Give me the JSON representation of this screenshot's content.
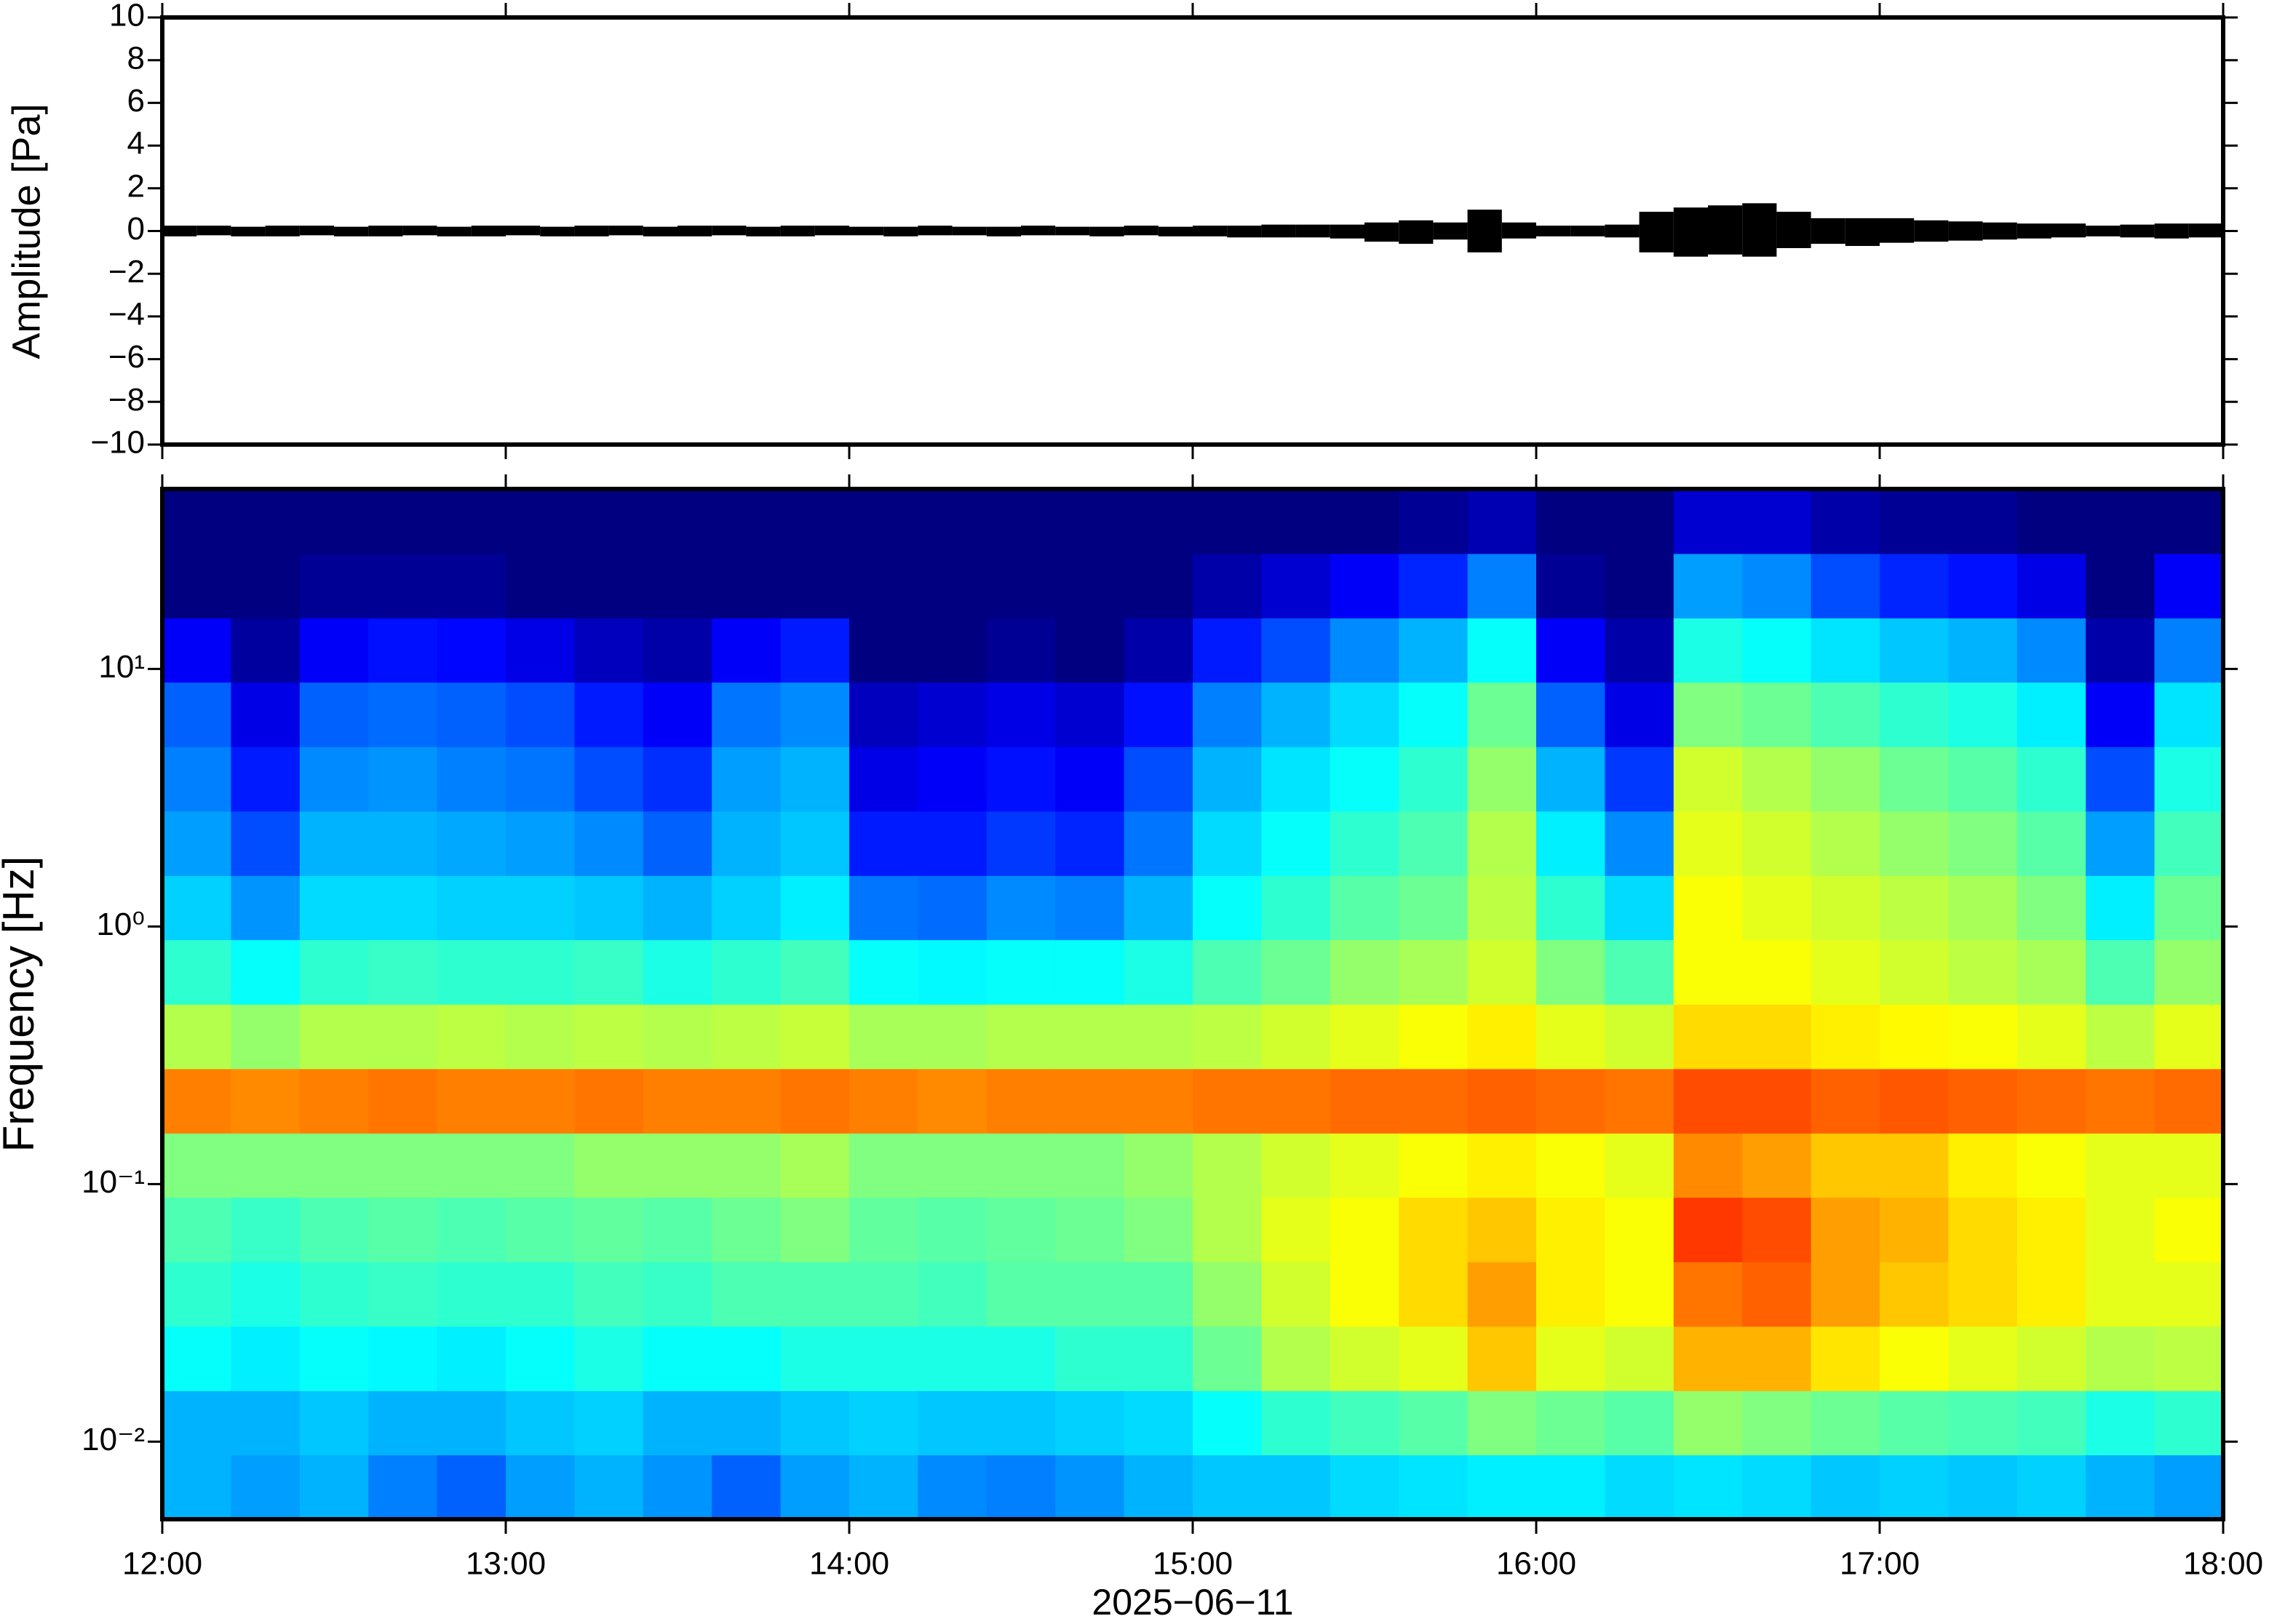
{
  "chart_data": [
    {
      "type": "waveform",
      "ylabel": "Amplitude [Pa]",
      "xlim": [
        12,
        18
      ],
      "xticks": [
        12,
        13,
        14,
        15,
        16,
        17,
        18
      ],
      "ylim": [
        -10,
        10
      ],
      "yticks": [
        {
          "value": -10,
          "label": "−10"
        },
        {
          "value": -8,
          "label": "−8"
        },
        {
          "value": -6,
          "label": "−6"
        },
        {
          "value": -4,
          "label": "−4"
        },
        {
          "value": -2,
          "label": "−2"
        },
        0,
        2,
        4,
        6,
        8,
        10
      ],
      "color": "#000000",
      "x": [
        12.0,
        12.1,
        12.2,
        12.3,
        12.4,
        12.5,
        12.6,
        12.7,
        12.8,
        12.9,
        13.0,
        13.1,
        13.2,
        13.3,
        13.4,
        13.5,
        13.6,
        13.7,
        13.8,
        13.9,
        14.0,
        14.1,
        14.2,
        14.3,
        14.4,
        14.5,
        14.6,
        14.7,
        14.8,
        14.9,
        15.0,
        15.1,
        15.2,
        15.3,
        15.4,
        15.5,
        15.6,
        15.7,
        15.8,
        15.9,
        16.0,
        16.1,
        16.2,
        16.3,
        16.4,
        16.5,
        16.6,
        16.7,
        16.8,
        16.9,
        17.0,
        17.1,
        17.2,
        17.3,
        17.4,
        17.5,
        17.6,
        17.7,
        17.8,
        17.9
      ],
      "series": [
        {
          "values": [
            0.25,
            0.25,
            0.2,
            0.25,
            0.25,
            0.2,
            0.25,
            0.25,
            0.2,
            0.25,
            0.25,
            0.2,
            0.25,
            0.25,
            0.2,
            0.25,
            0.25,
            0.2,
            0.25,
            0.25,
            0.2,
            0.2,
            0.25,
            0.2,
            0.2,
            0.25,
            0.2,
            0.2,
            0.25,
            0.2,
            0.25,
            0.25,
            0.3,
            0.3,
            0.3,
            0.4,
            0.5,
            0.4,
            1.0,
            0.4,
            0.25,
            0.25,
            0.3,
            0.9,
            1.1,
            1.2,
            1.3,
            0.9,
            0.6,
            0.6,
            0.6,
            0.5,
            0.45,
            0.4,
            0.35,
            0.35,
            0.25,
            0.3,
            0.35,
            0.35
          ]
        },
        {
          "values": [
            -0.25,
            -0.2,
            -0.25,
            -0.25,
            -0.2,
            -0.25,
            -0.25,
            -0.2,
            -0.25,
            -0.25,
            -0.2,
            -0.25,
            -0.25,
            -0.2,
            -0.25,
            -0.25,
            -0.2,
            -0.25,
            -0.25,
            -0.2,
            -0.2,
            -0.25,
            -0.2,
            -0.2,
            -0.25,
            -0.2,
            -0.2,
            -0.25,
            -0.2,
            -0.25,
            -0.25,
            -0.3,
            -0.3,
            -0.3,
            -0.35,
            -0.5,
            -0.6,
            -0.4,
            -1.0,
            -0.35,
            -0.25,
            -0.25,
            -0.3,
            -1.0,
            -1.2,
            -1.1,
            -1.2,
            -0.8,
            -0.6,
            -0.7,
            -0.55,
            -0.5,
            -0.45,
            -0.4,
            -0.35,
            -0.3,
            -0.25,
            -0.3,
            -0.35,
            -0.3
          ]
        }
      ]
    },
    {
      "type": "heatmap",
      "ylabel": "Frequency [Hz]",
      "xlabel": "2025−06−11",
      "xlim": [
        12,
        18
      ],
      "xticks": [
        {
          "value": 12,
          "label": "12:00"
        },
        {
          "value": 13,
          "label": "13:00"
        },
        {
          "value": 14,
          "label": "14:00"
        },
        {
          "value": 15,
          "label": "15:00"
        },
        {
          "value": 16,
          "label": "16:00"
        },
        {
          "value": 17,
          "label": "17:00"
        },
        {
          "value": 18,
          "label": "18:00"
        }
      ],
      "ylim": [
        0.005,
        50
      ],
      "log_y": true,
      "yticks": [
        {
          "value": 0.01,
          "label": "10⁻²"
        },
        {
          "value": 0.1,
          "label": "10⁻¹"
        },
        {
          "value": 1,
          "label": "10⁰"
        },
        {
          "value": 10,
          "label": "10¹"
        }
      ],
      "colormap": "jet",
      "zlim": [
        0,
        1
      ],
      "xbins": [
        12.0,
        12.2,
        12.4,
        12.6,
        12.8,
        13.0,
        13.2,
        13.4,
        13.6,
        13.8,
        14.0,
        14.2,
        14.4,
        14.6,
        14.8,
        15.0,
        15.2,
        15.4,
        15.6,
        15.8,
        16.0,
        16.2,
        16.4,
        16.6,
        16.8,
        17.0,
        17.2,
        17.4,
        17.6,
        17.8,
        18.0
      ],
      "ybins": [
        0.005,
        0.0089,
        0.0158,
        0.0281,
        0.05,
        0.089,
        0.158,
        0.281,
        0.5,
        0.89,
        1.58,
        2.81,
        5,
        8.9,
        15.8,
        28.1,
        50
      ],
      "z": [
        [
          0.3,
          0.3,
          0.38,
          0.42,
          0.45,
          0.5,
          0.75,
          0.55,
          0.42,
          0.33,
          0.28,
          0.25,
          0.22,
          0.12,
          0,
          0
        ],
        [
          0.28,
          0.3,
          0.36,
          0.4,
          0.43,
          0.5,
          0.74,
          0.52,
          0.38,
          0.27,
          0.2,
          0.15,
          0.1,
          0.03,
          0,
          0
        ],
        [
          0.3,
          0.32,
          0.38,
          0.42,
          0.45,
          0.5,
          0.75,
          0.55,
          0.42,
          0.34,
          0.3,
          0.26,
          0.22,
          0.12,
          0.02,
          0
        ],
        [
          0.25,
          0.3,
          0.37,
          0.43,
          0.46,
          0.5,
          0.76,
          0.55,
          0.43,
          0.34,
          0.3,
          0.27,
          0.23,
          0.14,
          0.02,
          0
        ],
        [
          0.22,
          0.3,
          0.36,
          0.42,
          0.45,
          0.5,
          0.75,
          0.56,
          0.42,
          0.33,
          0.29,
          0.25,
          0.22,
          0.13,
          0.02,
          0
        ],
        [
          0.28,
          0.32,
          0.38,
          0.42,
          0.46,
          0.5,
          0.75,
          0.55,
          0.42,
          0.33,
          0.28,
          0.24,
          0.2,
          0.1,
          0,
          0
        ],
        [
          0.3,
          0.33,
          0.4,
          0.44,
          0.47,
          0.52,
          0.76,
          0.56,
          0.43,
          0.32,
          0.26,
          0.2,
          0.15,
          0.06,
          0,
          0
        ],
        [
          0.27,
          0.3,
          0.38,
          0.43,
          0.46,
          0.52,
          0.75,
          0.55,
          0.4,
          0.3,
          0.22,
          0.17,
          0.12,
          0.04,
          0,
          0
        ],
        [
          0.22,
          0.3,
          0.38,
          0.45,
          0.48,
          0.52,
          0.75,
          0.56,
          0.42,
          0.33,
          0.3,
          0.28,
          0.24,
          0.12,
          0,
          0
        ],
        [
          0.28,
          0.32,
          0.4,
          0.45,
          0.5,
          0.54,
          0.76,
          0.57,
          0.44,
          0.36,
          0.32,
          0.3,
          0.26,
          0.15,
          0,
          0
        ],
        [
          0.3,
          0.33,
          0.4,
          0.45,
          0.47,
          0.5,
          0.75,
          0.54,
          0.38,
          0.24,
          0.15,
          0.1,
          0.06,
          0,
          0,
          0
        ],
        [
          0.26,
          0.32,
          0.4,
          0.44,
          0.46,
          0.5,
          0.74,
          0.54,
          0.37,
          0.23,
          0.15,
          0.12,
          0.08,
          0,
          0,
          0
        ],
        [
          0.25,
          0.32,
          0.4,
          0.46,
          0.47,
          0.5,
          0.75,
          0.55,
          0.38,
          0.26,
          0.18,
          0.14,
          0.1,
          0.02,
          0,
          0
        ],
        [
          0.27,
          0.33,
          0.42,
          0.46,
          0.48,
          0.5,
          0.75,
          0.55,
          0.38,
          0.25,
          0.16,
          0.12,
          0.08,
          0,
          0,
          0
        ],
        [
          0.3,
          0.34,
          0.42,
          0.46,
          0.5,
          0.52,
          0.75,
          0.55,
          0.4,
          0.3,
          0.24,
          0.2,
          0.14,
          0.04,
          0,
          0
        ],
        [
          0.32,
          0.38,
          0.48,
          0.52,
          0.55,
          0.55,
          0.76,
          0.56,
          0.45,
          0.38,
          0.34,
          0.3,
          0.25,
          0.15,
          0.04,
          0
        ],
        [
          0.32,
          0.42,
          0.55,
          0.58,
          0.6,
          0.58,
          0.76,
          0.58,
          0.48,
          0.42,
          0.38,
          0.35,
          0.3,
          0.2,
          0.08,
          0
        ],
        [
          0.34,
          0.44,
          0.58,
          0.62,
          0.62,
          0.6,
          0.77,
          0.6,
          0.52,
          0.46,
          0.42,
          0.38,
          0.34,
          0.26,
          0.12,
          0
        ],
        [
          0.35,
          0.46,
          0.6,
          0.66,
          0.66,
          0.62,
          0.77,
          0.62,
          0.54,
          0.48,
          0.45,
          0.42,
          0.38,
          0.3,
          0.16,
          0.02
        ],
        [
          0.36,
          0.5,
          0.68,
          0.72,
          0.68,
          0.64,
          0.78,
          0.64,
          0.58,
          0.56,
          0.55,
          0.52,
          0.48,
          0.38,
          0.25,
          0.05
        ],
        [
          0.36,
          0.48,
          0.6,
          0.64,
          0.64,
          0.62,
          0.77,
          0.6,
          0.5,
          0.42,
          0.36,
          0.3,
          0.22,
          0.12,
          0.02,
          0
        ],
        [
          0.34,
          0.46,
          0.58,
          0.62,
          0.62,
          0.6,
          0.76,
          0.58,
          0.45,
          0.34,
          0.26,
          0.18,
          0.1,
          0.04,
          0,
          0
        ],
        [
          0.35,
          0.52,
          0.7,
          0.76,
          0.82,
          0.74,
          0.8,
          0.66,
          0.62,
          0.62,
          0.6,
          0.58,
          0.5,
          0.4,
          0.28,
          0.08
        ],
        [
          0.34,
          0.5,
          0.7,
          0.78,
          0.8,
          0.72,
          0.8,
          0.66,
          0.62,
          0.6,
          0.58,
          0.55,
          0.48,
          0.38,
          0.26,
          0.08
        ],
        [
          0.32,
          0.48,
          0.65,
          0.72,
          0.72,
          0.68,
          0.78,
          0.64,
          0.6,
          0.58,
          0.55,
          0.52,
          0.45,
          0.35,
          0.2,
          0.04
        ],
        [
          0.33,
          0.46,
          0.62,
          0.68,
          0.7,
          0.68,
          0.79,
          0.63,
          0.58,
          0.56,
          0.52,
          0.48,
          0.42,
          0.32,
          0.16,
          0.02
        ],
        [
          0.32,
          0.45,
          0.6,
          0.66,
          0.66,
          0.64,
          0.78,
          0.62,
          0.56,
          0.54,
          0.5,
          0.46,
          0.4,
          0.3,
          0.14,
          0.02
        ],
        [
          0.33,
          0.44,
          0.58,
          0.64,
          0.64,
          0.62,
          0.77,
          0.6,
          0.54,
          0.5,
          0.46,
          0.42,
          0.36,
          0.26,
          0.1,
          0
        ],
        [
          0.3,
          0.4,
          0.55,
          0.6,
          0.6,
          0.6,
          0.76,
          0.56,
          0.45,
          0.36,
          0.28,
          0.2,
          0.12,
          0.04,
          0,
          0
        ],
        [
          0.28,
          0.42,
          0.56,
          0.6,
          0.62,
          0.6,
          0.77,
          0.6,
          0.52,
          0.48,
          0.44,
          0.4,
          0.35,
          0.25,
          0.12,
          0
        ]
      ]
    }
  ]
}
